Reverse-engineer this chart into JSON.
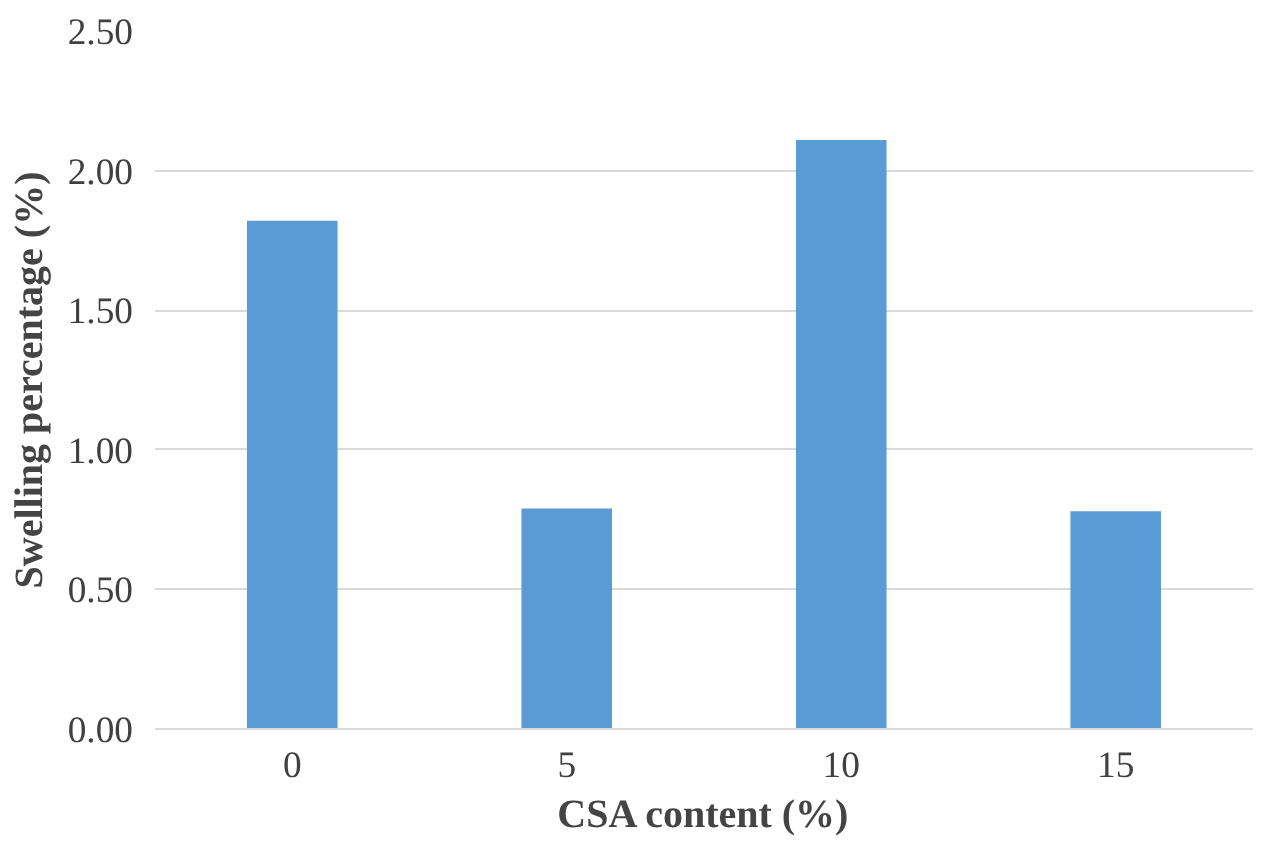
{
  "chart_data": {
    "type": "bar",
    "xlabel": "CSA content (%)",
    "ylabel": "Swelling percentage (%)",
    "categories": [
      "0",
      "5",
      "10",
      "15"
    ],
    "values": [
      1.82,
      0.79,
      2.11,
      0.78
    ],
    "color": "#5b9bd5",
    "ylim": [
      0,
      2.5
    ],
    "yticks": [
      {
        "value": 0,
        "label": "0.00"
      },
      {
        "value": 0.5,
        "label": "0.50"
      },
      {
        "value": 1,
        "label": "1.00"
      },
      {
        "value": 1.5,
        "label": "1.50"
      },
      {
        "value": 2,
        "label": "2.00"
      },
      {
        "value": 2.5,
        "label": "2.50"
      }
    ],
    "grid": "y"
  }
}
